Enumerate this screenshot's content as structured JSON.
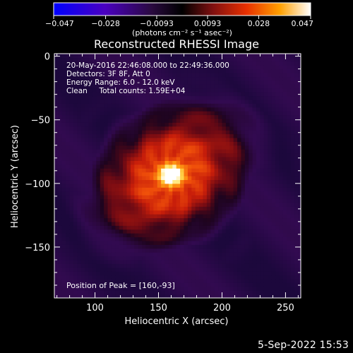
{
  "colorbar": {
    "ticks": [
      -0.047,
      -0.028,
      -0.0093,
      0.0093,
      0.028,
      0.047
    ],
    "tick_labels": [
      "−0.047",
      "−0.028",
      "−0.0093",
      "0.0093",
      "0.028",
      "0.047"
    ],
    "unit_label": "(photons cm⁻² s⁻¹ asec⁻²)"
  },
  "chart_data": {
    "type": "heatmap",
    "title": "Reconstructed RHESSI Image",
    "xlabel": "Heliocentric X (arcsec)",
    "ylabel": "Heliocentric Y (arcsec)",
    "xlim": [
      68,
      262
    ],
    "ylim": [
      -190,
      2
    ],
    "xticks": [
      100,
      150,
      200,
      250
    ],
    "yticks": [
      0,
      -50,
      -100,
      -150
    ],
    "peak": [
      160,
      -93
    ],
    "color_range": [
      -0.047,
      0.047
    ],
    "colormap": "rhessi",
    "info_lines": [
      "20-May-2016 22:46:08.000 to 22:49:36.000",
      "Detectors: 3F 8F, Att 0",
      "Energy Range: 6.0 - 12.0 keV",
      "Clean     Total counts: 1.59E+04"
    ],
    "peak_label": "Position of Peak = [160,-93]"
  },
  "footer_date": "5-Sep-2022 15:53",
  "colors": {
    "background": "#000000",
    "foreground": "#ffffff"
  }
}
